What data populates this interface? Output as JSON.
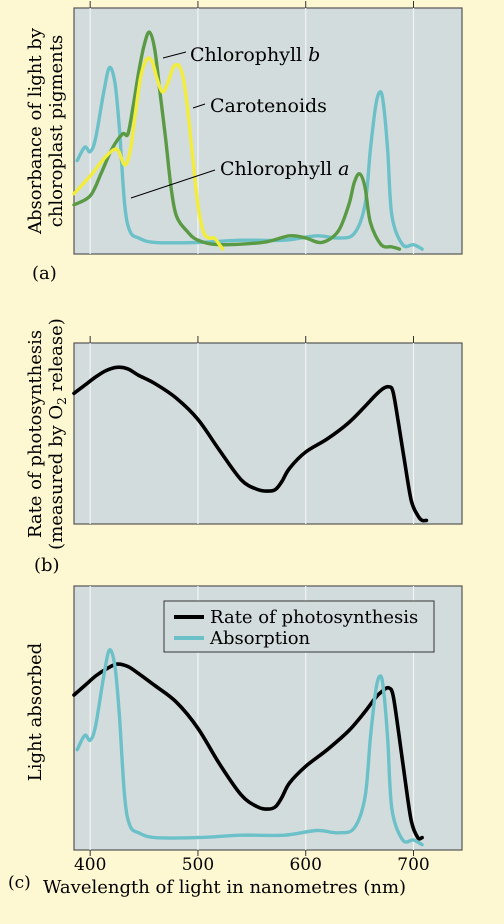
{
  "figure": {
    "colors": {
      "background": "#fdf7d2",
      "plot_bg": "#d3dcdd",
      "grid": "#f2f4f4",
      "chlorophyll_a": "#6cc1c9",
      "chlorophyll_b": "#5b9a44",
      "carotenoids": "#f2ec3a",
      "photosynthesis": "#000000"
    }
  },
  "chart_data": [
    {
      "type": "line",
      "panel_label": "(a)",
      "ylabel_line1": "Absorbance of light by",
      "ylabel_line2": "chloroplast pigments",
      "xlim": [
        385,
        745
      ],
      "grid": "vertical",
      "annotations": [
        {
          "name": "Chlorophyll b",
          "text": "Chlorophyll ",
          "italic": "b"
        },
        {
          "name": "Carotenoids",
          "text": "Carotenoids",
          "italic": ""
        },
        {
          "name": "Chlorophyll a",
          "text": "Chlorophyll ",
          "italic": "a"
        }
      ],
      "series": [
        {
          "key": "chlorophyll_a",
          "x": [
            388,
            395,
            400,
            405,
            413,
            418,
            423,
            427,
            432,
            437,
            445,
            460,
            500,
            540,
            580,
            610,
            630,
            645,
            655,
            660,
            665,
            669,
            672,
            676,
            680,
            690,
            700,
            708
          ],
          "y": [
            0.4,
            0.46,
            0.44,
            0.5,
            0.72,
            0.82,
            0.75,
            0.55,
            0.2,
            0.08,
            0.05,
            0.03,
            0.03,
            0.04,
            0.04,
            0.06,
            0.05,
            0.07,
            0.2,
            0.45,
            0.65,
            0.71,
            0.66,
            0.45,
            0.15,
            0.02,
            0.02,
            0.0
          ]
        },
        {
          "key": "chlorophyll_b",
          "x": [
            385,
            400,
            410,
            420,
            430,
            435,
            440,
            445,
            450,
            455,
            460,
            465,
            470,
            475,
            480,
            490,
            500,
            520,
            560,
            585,
            600,
            615,
            630,
            640,
            645,
            650,
            655,
            660,
            670,
            680,
            687
          ],
          "y": [
            0.2,
            0.24,
            0.34,
            0.45,
            0.52,
            0.52,
            0.65,
            0.8,
            0.92,
            0.98,
            0.9,
            0.7,
            0.5,
            0.28,
            0.15,
            0.08,
            0.04,
            0.02,
            0.03,
            0.06,
            0.05,
            0.03,
            0.08,
            0.2,
            0.3,
            0.34,
            0.28,
            0.12,
            0.02,
            0.01,
            0.0
          ]
        },
        {
          "key": "carotenoids",
          "x": [
            385,
            400,
            415,
            425,
            432,
            437,
            441,
            447,
            453,
            458,
            462,
            467,
            472,
            477,
            482,
            486,
            490,
            495,
            500,
            505,
            510,
            515,
            520,
            523
          ],
          "y": [
            0.25,
            0.33,
            0.42,
            0.45,
            0.38,
            0.44,
            0.58,
            0.78,
            0.86,
            0.84,
            0.77,
            0.71,
            0.75,
            0.82,
            0.83,
            0.78,
            0.65,
            0.42,
            0.2,
            0.08,
            0.05,
            0.05,
            0.02,
            0.0
          ]
        }
      ]
    },
    {
      "type": "line",
      "panel_label": "(b)",
      "ylabel_line1": "Rate of photosynthesis",
      "ylabel_line2_pre": "(measured by O",
      "ylabel_line2_sub": "2",
      "ylabel_line2_post": " release)",
      "xlim": [
        385,
        745
      ],
      "grid": "vertical",
      "series": [
        {
          "key": "photosynthesis",
          "x": [
            385,
            395,
            405,
            415,
            425,
            435,
            445,
            460,
            480,
            500,
            520,
            540,
            555,
            565,
            572,
            578,
            585,
            600,
            620,
            640,
            655,
            665,
            672,
            677,
            681,
            686,
            692,
            698,
            704,
            708,
            712
          ],
          "y": [
            0.78,
            0.83,
            0.88,
            0.92,
            0.94,
            0.93,
            0.89,
            0.84,
            0.75,
            0.62,
            0.43,
            0.25,
            0.19,
            0.18,
            0.19,
            0.24,
            0.32,
            0.42,
            0.5,
            0.6,
            0.7,
            0.77,
            0.81,
            0.82,
            0.79,
            0.6,
            0.35,
            0.12,
            0.03,
            0.0,
            0.0
          ]
        }
      ]
    },
    {
      "type": "line",
      "panel_label": "(c)",
      "ylabel": "Light absorbed",
      "xlabel": "Wavelength of light in nanometres (nm)",
      "xlim": [
        385,
        745
      ],
      "xticks": [
        400,
        500,
        600,
        700
      ],
      "grid": "vertical",
      "legend": "top-right",
      "legend_entries": [
        {
          "key": "photosynthesis",
          "name": "Rate of photosynthesis"
        },
        {
          "key": "chlorophyll_a",
          "name": "Absorption"
        }
      ],
      "series": [
        {
          "key": "photosynthesis",
          "x": [
            385,
            395,
            405,
            415,
            425,
            435,
            445,
            460,
            480,
            500,
            520,
            540,
            555,
            565,
            572,
            578,
            585,
            600,
            620,
            640,
            655,
            665,
            672,
            677,
            681,
            686,
            692,
            698,
            704,
            708
          ],
          "y": [
            0.63,
            0.67,
            0.71,
            0.74,
            0.76,
            0.75,
            0.72,
            0.67,
            0.6,
            0.49,
            0.34,
            0.21,
            0.16,
            0.15,
            0.16,
            0.2,
            0.26,
            0.33,
            0.4,
            0.48,
            0.56,
            0.62,
            0.65,
            0.66,
            0.63,
            0.48,
            0.28,
            0.1,
            0.03,
            0.03
          ]
        },
        {
          "key": "chlorophyll_a",
          "x": [
            388,
            395,
            400,
            405,
            413,
            418,
            423,
            427,
            432,
            437,
            445,
            460,
            500,
            540,
            580,
            610,
            630,
            645,
            655,
            660,
            665,
            669,
            672,
            676,
            680,
            690,
            700,
            708
          ],
          "y": [
            0.4,
            0.46,
            0.44,
            0.5,
            0.72,
            0.82,
            0.75,
            0.55,
            0.2,
            0.08,
            0.05,
            0.03,
            0.03,
            0.04,
            0.04,
            0.06,
            0.05,
            0.07,
            0.2,
            0.45,
            0.65,
            0.71,
            0.66,
            0.45,
            0.15,
            0.02,
            0.02,
            0.0
          ]
        }
      ]
    }
  ]
}
